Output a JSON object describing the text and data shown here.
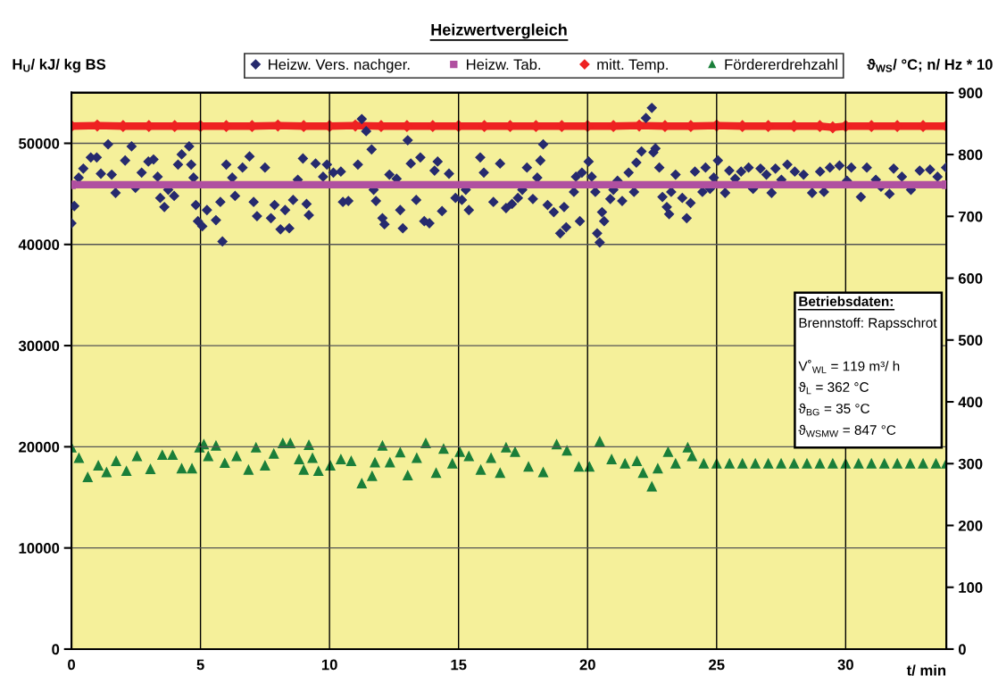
{
  "chart_data": {
    "type": "scatter",
    "title": "Heizwertvergleich",
    "ylabel": "H$_{U}$/ kJ/ kg BS",
    "y2label": "ϑ$_{WS}$/ °C; n/ Hz * 10",
    "xlabel": "t/ min",
    "xlim": [
      0,
      33.9
    ],
    "xticks": [
      0,
      5,
      10,
      15,
      20,
      25,
      30
    ],
    "ylim": [
      0,
      55000
    ],
    "yticks": [
      0,
      10000,
      20000,
      30000,
      40000,
      50000
    ],
    "y2lim": [
      0,
      900
    ],
    "y2ticks": [
      0,
      100,
      200,
      300,
      400,
      500,
      600,
      700,
      800,
      900
    ],
    "grid": true,
    "legend": "top",
    "annotations": [
      "Betriebsdaten:",
      "Brennstoff: Rapsschrot",
      "V˚$_{WL}$ = 119 m³/ h",
      "ϑ$_{L}$ = 362 °C",
      "ϑ$_{BG}$ = 35 °C",
      "ϑ$_{WSMW}$ = 847 °C"
    ],
    "series": [
      {
        "name": "Heizw. Vers. nachger.",
        "marker": "diamond",
        "color": "#262a6e",
        "x": [
          0,
          0.11,
          0.28,
          0.46,
          0.75,
          0.98,
          1.14,
          1.42,
          1.56,
          1.71,
          2.08,
          2.33,
          2.48,
          2.72,
          2.98,
          3.18,
          3.34,
          3.44,
          3.6,
          3.75,
          3.98,
          4.13,
          4.27,
          4.56,
          4.64,
          4.73,
          4.82,
          4.9,
          5.07,
          5.25,
          5.6,
          5.77,
          5.85,
          6.0,
          6.23,
          6.34,
          6.63,
          6.9,
          7.06,
          7.19,
          7.5,
          7.73,
          7.87,
          8.1,
          8.28,
          8.44,
          8.59,
          8.77,
          8.97,
          9.11,
          9.2,
          9.46,
          9.75,
          9.9,
          10.15,
          10.44,
          10.52,
          10.73,
          11.1,
          11.25,
          11.42,
          11.63,
          11.71,
          11.8,
          12.05,
          12.13,
          12.32,
          12.6,
          12.74,
          12.84,
          13.03,
          13.15,
          13.36,
          13.52,
          13.67,
          13.87,
          14.07,
          14.19,
          14.36,
          14.63,
          14.88,
          15.13,
          15.28,
          15.4,
          15.84,
          15.98,
          16.35,
          16.61,
          16.84,
          17.07,
          17.3,
          17.47,
          17.65,
          17.88,
          18.05,
          18.17,
          18.28,
          18.45,
          18.69,
          18.94,
          19.09,
          19.17,
          19.47,
          19.55,
          19.7,
          19.78,
          20.04,
          20.16,
          20.3,
          20.37,
          20.47,
          20.56,
          20.64,
          20.88,
          21.0,
          21.16,
          21.34,
          21.59,
          21.8,
          21.89,
          22.09,
          22.26,
          22.49,
          22.55,
          22.63,
          22.78,
          22.9,
          23.07,
          23.16,
          23.24,
          23.41,
          23.67,
          23.84,
          23.99,
          24.16,
          24.45,
          24.57,
          24.74,
          24.89,
          25.05,
          25.33,
          25.49,
          25.72,
          25.95,
          26.24,
          26.41,
          26.7,
          26.93,
          27.13,
          27.28,
          27.51,
          27.74,
          28.03,
          28.37,
          28.7,
          29.01,
          29.16,
          29.39,
          29.76,
          30.05,
          30.22,
          30.59,
          30.82,
          31.17,
          31.37,
          31.7,
          31.86,
          32.18,
          32.53,
          32.87,
          33.27,
          33.56,
          33.89
        ],
        "values": [
          42100,
          43800,
          46600,
          47500,
          48600,
          48600,
          47000,
          49900,
          46900,
          45100,
          48300,
          49700,
          45600,
          47100,
          48200,
          48400,
          46700,
          44600,
          43700,
          45400,
          44800,
          47900,
          48900,
          49700,
          47900,
          46600,
          43900,
          42300,
          41800,
          43400,
          42400,
          44200,
          40300,
          47900,
          46600,
          44800,
          47600,
          48700,
          44200,
          42800,
          47600,
          42600,
          43900,
          41500,
          43400,
          41600,
          44400,
          46400,
          48500,
          44000,
          42900,
          48000,
          46700,
          47900,
          47100,
          47200,
          44200,
          44300,
          47900,
          52400,
          51200,
          49400,
          45400,
          44300,
          42600,
          42000,
          46900,
          46500,
          43400,
          41600,
          50300,
          48000,
          44400,
          48600,
          42300,
          42100,
          47300,
          48200,
          43300,
          47000,
          44600,
          44400,
          45400,
          43400,
          48600,
          47100,
          44200,
          48000,
          43600,
          44000,
          44600,
          45400,
          47600,
          44500,
          46600,
          48300,
          49900,
          43900,
          43200,
          41100,
          43700,
          41700,
          45200,
          46700,
          42300,
          47100,
          48200,
          46700,
          45200,
          41100,
          40200,
          43200,
          42300,
          44500,
          45400,
          46300,
          44300,
          47100,
          45200,
          48100,
          49200,
          52500,
          53500,
          49100,
          49500,
          47600,
          44700,
          43700,
          43000,
          45200,
          46900,
          44600,
          42600,
          44100,
          47200,
          45200,
          47600,
          45500,
          46600,
          48300,
          45100,
          47300,
          46500,
          47200,
          47600,
          45500,
          47500,
          46900,
          45100,
          47500,
          46400,
          47900,
          47200,
          46900,
          45100,
          47200,
          45200,
          47600,
          47800,
          46300,
          47600,
          44700,
          47600,
          46400,
          45700,
          45000,
          47500,
          46700,
          45400,
          47300,
          47400,
          46700,
          47600
        ]
      },
      {
        "name": "Heizw. Tab.",
        "type": "line",
        "marker": "square",
        "color": "#b050a0",
        "x": [
          0,
          33.9
        ],
        "values": [
          45900,
          45900
        ]
      },
      {
        "name": "mitt. Temp.",
        "type": "line",
        "marker": "diamond",
        "axis": "y2",
        "color": "#ee2222",
        "x": [
          0,
          1,
          2,
          3,
          4,
          5,
          6,
          7,
          8,
          9,
          10,
          11,
          12,
          13,
          14,
          15,
          16,
          17,
          18,
          19,
          20,
          21,
          22,
          23,
          24,
          25,
          26,
          27,
          28,
          29,
          29.5,
          30,
          31,
          32,
          33,
          33.9
        ],
        "values": [
          846,
          847,
          846,
          846,
          846,
          846,
          846,
          846,
          847,
          846,
          846,
          847,
          846,
          846,
          846,
          846,
          846,
          846,
          846,
          846,
          846,
          846,
          847,
          846,
          846,
          847,
          846,
          846,
          846,
          846,
          844,
          846,
          846,
          846,
          846,
          846
        ]
      },
      {
        "name": "Fördererdrehzahl",
        "marker": "triangle",
        "axis": "y2",
        "color": "#1a7f3a",
        "x": [
          0,
          0.29,
          0.63,
          1.04,
          1.36,
          1.73,
          2.13,
          2.54,
          3.06,
          3.52,
          3.92,
          4.27,
          4.67,
          4.96,
          5.13,
          5.3,
          5.6,
          5.94,
          6.4,
          6.86,
          7.15,
          7.5,
          7.84,
          8.19,
          8.48,
          8.82,
          9.0,
          9.2,
          9.34,
          9.57,
          10.03,
          10.44,
          10.84,
          11.25,
          11.65,
          11.76,
          12.05,
          12.34,
          12.74,
          13.03,
          13.38,
          13.73,
          14.13,
          14.42,
          14.76,
          15.05,
          15.4,
          15.86,
          16.26,
          16.61,
          16.84,
          17.19,
          17.71,
          18.28,
          18.8,
          19.2,
          19.66,
          20.07,
          20.47,
          20.93,
          21.45,
          21.91,
          22.15,
          22.49,
          22.72,
          23.12,
          23.41,
          23.88,
          24.05,
          24.5,
          25,
          25.5,
          26,
          26.5,
          27,
          27.5,
          28,
          28.5,
          29,
          29.5,
          30,
          30.5,
          31,
          31.5,
          32,
          32.5,
          33,
          33.5,
          33.9
        ],
        "values": [
          326,
          309,
          278,
          297,
          286,
          304,
          288,
          312,
          291,
          314,
          314,
          292,
          292,
          326,
          331,
          312,
          329,
          301,
          312,
          290,
          326,
          297,
          316,
          333,
          333,
          307,
          290,
          330,
          309,
          288,
          297,
          307,
          304,
          268,
          280,
          302,
          329,
          302,
          318,
          281,
          309,
          333,
          285,
          324,
          300,
          319,
          312,
          290,
          309,
          285,
          326,
          319,
          295,
          286,
          331,
          321,
          295,
          295,
          336,
          307,
          300,
          304,
          285,
          263,
          292,
          319,
          300,
          326,
          312,
          300,
          300,
          300,
          300,
          300,
          300,
          300,
          300,
          300,
          300,
          300,
          300,
          300,
          300,
          300,
          300,
          300,
          300,
          300,
          300
        ]
      }
    ]
  }
}
